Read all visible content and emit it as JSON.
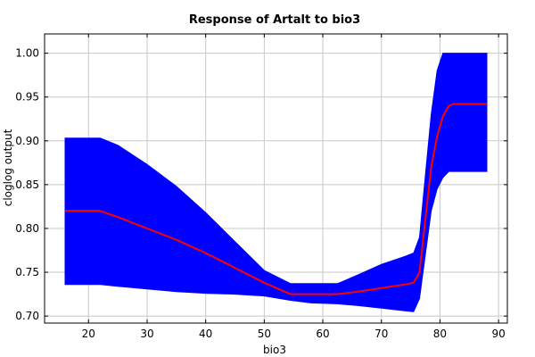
{
  "chart_data": {
    "type": "area",
    "title": "Response of Artalt to bio3",
    "xlabel": "bio3",
    "ylabel": "cloglog output",
    "xlim": [
      12.5,
      91.5
    ],
    "ylim": [
      0.692,
      1.022
    ],
    "x_ticks": [
      20,
      30,
      40,
      50,
      60,
      70,
      80,
      90
    ],
    "y_ticks": [
      0.7,
      0.75,
      0.8,
      0.85,
      0.9,
      0.95,
      1.0
    ],
    "grid": true,
    "band_color": "#0000ff",
    "line_color": "#ff0000",
    "series": [
      {
        "type": "line",
        "x": [
          16,
          22,
          25,
          30,
          35,
          40,
          45,
          50,
          54.5,
          58,
          62.5,
          66,
          70,
          74,
          75.5,
          76.5,
          77.5,
          78.5,
          79.5,
          80.5,
          81.5,
          82.3,
          85,
          88
        ],
        "values": [
          0.82,
          0.82,
          0.813,
          0.8,
          0.787,
          0.772,
          0.755,
          0.738,
          0.725,
          0.725,
          0.725,
          0.728,
          0.732,
          0.736,
          0.738,
          0.75,
          0.81,
          0.87,
          0.905,
          0.928,
          0.94,
          0.942,
          0.942,
          0.942
        ]
      },
      {
        "type": "band-upper",
        "x": [
          16,
          22,
          25,
          30,
          35,
          40,
          45,
          50,
          54.5,
          58,
          62.5,
          66,
          70,
          74,
          75.5,
          76.5,
          77.5,
          78.5,
          79.5,
          80.5,
          81.5,
          82.3,
          85,
          88
        ],
        "values": [
          0.903,
          0.903,
          0.895,
          0.873,
          0.848,
          0.818,
          0.785,
          0.752,
          0.737,
          0.737,
          0.737,
          0.747,
          0.759,
          0.768,
          0.772,
          0.79,
          0.86,
          0.93,
          0.98,
          1.0,
          1.0,
          1.0,
          1.0,
          1.0
        ]
      },
      {
        "type": "band-lower",
        "x": [
          16,
          22,
          25,
          30,
          35,
          40,
          45,
          50,
          54.5,
          58,
          62.5,
          66,
          70,
          74,
          75.5,
          76.5,
          77.5,
          78.5,
          79.5,
          80.5,
          81.5,
          82.3,
          85,
          88
        ],
        "values": [
          0.736,
          0.736,
          0.734,
          0.731,
          0.728,
          0.726,
          0.725,
          0.723,
          0.718,
          0.715,
          0.714,
          0.712,
          0.709,
          0.706,
          0.705,
          0.72,
          0.77,
          0.82,
          0.845,
          0.858,
          0.865,
          0.865,
          0.865,
          0.865
        ]
      }
    ]
  }
}
